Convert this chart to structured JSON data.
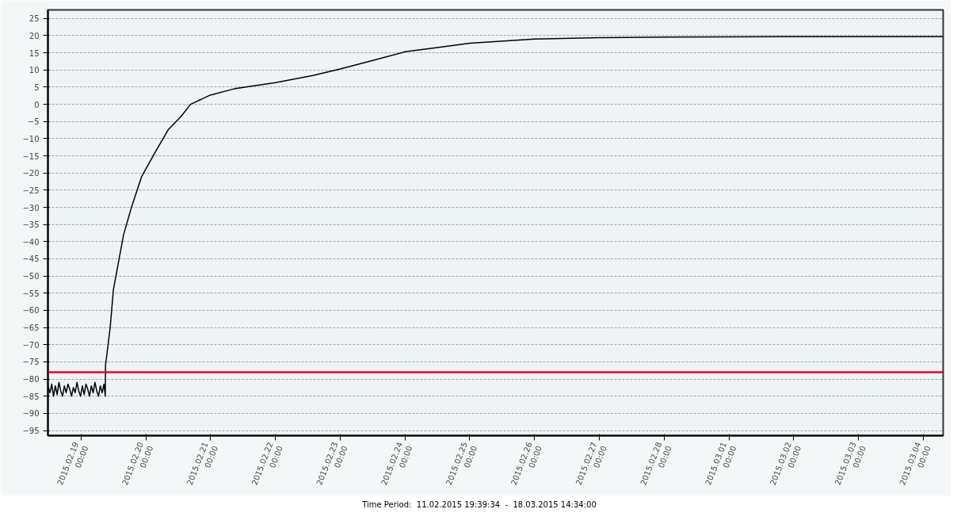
{
  "chart_data": {
    "type": "line",
    "xlim": [
      "2015-02-18T11:45",
      "2015-03-04T07:20"
    ],
    "ylim": [
      -96.5,
      27.5
    ],
    "yticks": [
      -95,
      -90,
      -85,
      -80,
      -75,
      -70,
      -65,
      -60,
      -55,
      -50,
      -45,
      -40,
      -35,
      -30,
      -25,
      -20,
      -15,
      -10,
      -5,
      0,
      5,
      10,
      15,
      20,
      25
    ],
    "xticks": [
      {
        "value": "2015-02-19",
        "label": "2015.02.19\n00:00"
      },
      {
        "value": "2015-02-20",
        "label": "2015.02.20\n00:00"
      },
      {
        "value": "2015-02-21",
        "label": "2015.02.21\n00:00"
      },
      {
        "value": "2015-02-22",
        "label": "2015.02.22\n00:00"
      },
      {
        "value": "2015-02-23",
        "label": "2015.02.23\n00:00"
      },
      {
        "value": "2015-02-24",
        "label": "2015.02.24\n00:00"
      },
      {
        "value": "2015-02-25",
        "label": "2015.02.25\n00:00"
      },
      {
        "value": "2015-02-26",
        "label": "2015.02.26\n00:00"
      },
      {
        "value": "2015-02-27",
        "label": "2015.02.27\n00:00"
      },
      {
        "value": "2015-02-28",
        "label": "2015.02.28\n00:00"
      },
      {
        "value": "2015-03-01",
        "label": "2015.03.01\n00:00"
      },
      {
        "value": "2015-03-02",
        "label": "2015.03.02\n00:00"
      },
      {
        "value": "2015-03-03",
        "label": "2015.03.03\n00:00"
      },
      {
        "value": "2015-03-04",
        "label": "2015.03.04\n00:00"
      }
    ],
    "grid": true,
    "line_style": "solid",
    "x": [
      "2015-02-18T11:45",
      "2015-02-18T12:30",
      "2015-02-18T13:10",
      "2015-02-18T13:50",
      "2015-02-18T14:30",
      "2015-02-18T15:10",
      "2015-02-18T15:50",
      "2015-02-18T16:30",
      "2015-02-18T17:10",
      "2015-02-18T17:50",
      "2015-02-18T18:30",
      "2015-02-18T19:10",
      "2015-02-18T19:50",
      "2015-02-18T20:30",
      "2015-02-18T21:10",
      "2015-02-18T21:50",
      "2015-02-18T22:30",
      "2015-02-18T23:10",
      "2015-02-18T23:50",
      "2015-02-19T00:30",
      "2015-02-19T01:10",
      "2015-02-19T01:50",
      "2015-02-19T02:30",
      "2015-02-19T03:10",
      "2015-02-19T03:50",
      "2015-02-19T04:30",
      "2015-02-19T05:10",
      "2015-02-19T05:50",
      "2015-02-19T06:30",
      "2015-02-19T07:10",
      "2015-02-19T07:50",
      "2015-02-19T08:30",
      "2015-02-19T09:00",
      "2015-02-19T09:05",
      "2015-02-19T10:48",
      "2015-02-19T12:00",
      "2015-02-19T15:46",
      "2015-02-19T18:41",
      "2015-02-19T22:29",
      "2015-02-20T03:27",
      "2015-02-20T08:24",
      "2015-02-20T13:05",
      "2015-02-20T16:35",
      "2015-02-20T23:53",
      "2015-02-21T08:38",
      "2015-02-22T00:00",
      "2015-02-22T13:50",
      "2015-02-23T00:00",
      "2015-02-23T13:10",
      "2015-02-24T00:00",
      "2015-02-24T12:30",
      "2015-02-25T00:00",
      "2015-02-26T00:00",
      "2015-02-27T00:00",
      "2015-02-28T01:00",
      "2015-03-01T21:00",
      "2015-03-03T02:00",
      "2015-03-04T07:20"
    ],
    "series": [
      {
        "color": "#000000",
        "values": [
          -82,
          -84,
          -81.5,
          -85,
          -82,
          -84.5,
          -81,
          -83.5,
          -85,
          -82,
          -84,
          -81.5,
          -83,
          -85,
          -82.5,
          -84,
          -81,
          -83.5,
          -85,
          -82,
          -84.5,
          -81.5,
          -83,
          -85,
          -82,
          -84,
          -81,
          -83.5,
          -85,
          -82,
          -84,
          -81.5,
          -85,
          -76,
          -65,
          -54,
          -38,
          -30,
          -21,
          -14,
          -7.3,
          -3.5,
          0,
          2.7,
          4.5,
          6.3,
          8.4,
          10.3,
          13,
          15.3,
          16.6,
          17.8,
          19,
          19.4,
          19.6,
          19.7,
          19.7,
          19.7
        ]
      }
    ],
    "ref_lines": [
      {
        "axis": "y",
        "value": -78,
        "color": "#e8003a"
      }
    ],
    "annotations": [
      "Time Period:  11.02.2015 19:39:34  -  18.03.2015 14:34:00"
    ]
  }
}
